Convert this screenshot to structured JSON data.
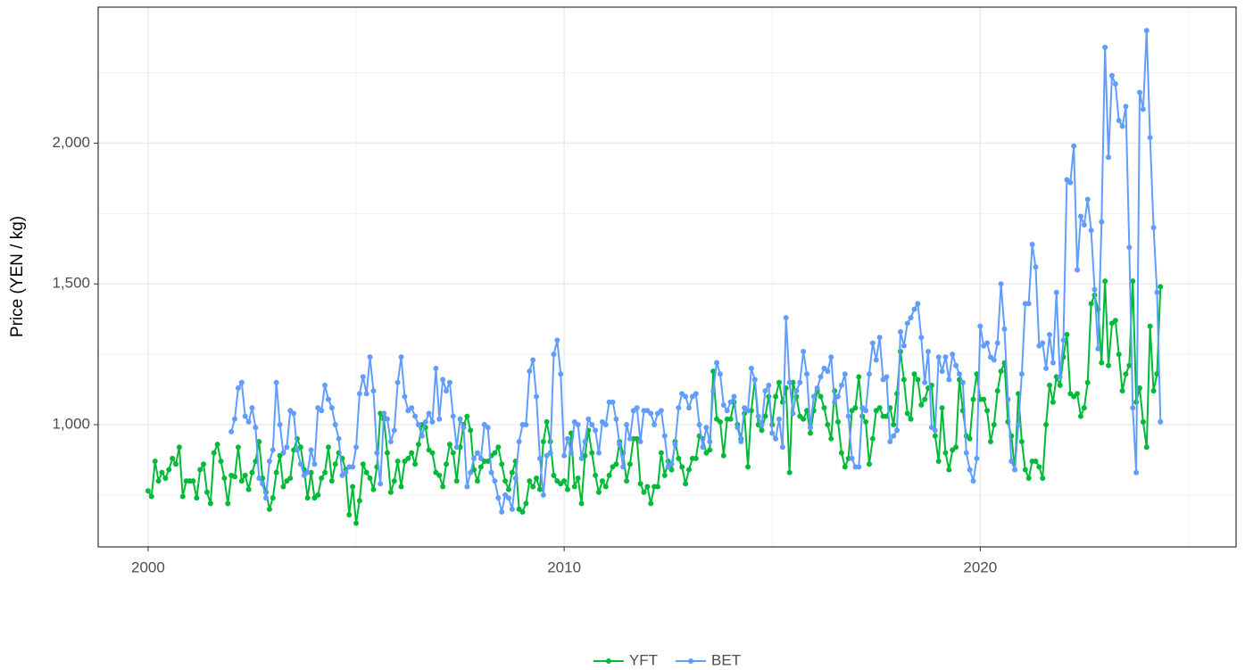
{
  "chart_data": {
    "type": "line",
    "ylabel": "Price (YEN / kg)",
    "xlim": [
      1998.8,
      2026.15
    ],
    "xticks": [
      2000,
      2010,
      2020
    ],
    "ylim": [
      566,
      2483
    ],
    "yticks": [
      {
        "value": 1000,
        "label": "1,000"
      },
      {
        "value": 1500,
        "label": "1,500"
      },
      {
        "value": 2000,
        "label": "2,000"
      }
    ],
    "grid": true,
    "legend": "bottom",
    "x": [
      2000,
      2000.083,
      2000.167,
      2000.25,
      2000.333,
      2000.417,
      2000.5,
      2000.583,
      2000.667,
      2000.75,
      2000.833,
      2000.917,
      2001,
      2001.083,
      2001.167,
      2001.25,
      2001.333,
      2001.417,
      2001.5,
      2001.583,
      2001.667,
      2001.75,
      2001.833,
      2001.917,
      2002,
      2002.083,
      2002.167,
      2002.25,
      2002.333,
      2002.417,
      2002.5,
      2002.583,
      2002.667,
      2002.75,
      2002.833,
      2002.917,
      2003,
      2003.083,
      2003.167,
      2003.25,
      2003.333,
      2003.417,
      2003.5,
      2003.583,
      2003.667,
      2003.75,
      2003.833,
      2003.917,
      2004,
      2004.083,
      2004.167,
      2004.25,
      2004.333,
      2004.417,
      2004.5,
      2004.583,
      2004.667,
      2004.75,
      2004.833,
      2004.917,
      2005,
      2005.083,
      2005.167,
      2005.25,
      2005.333,
      2005.417,
      2005.5,
      2005.583,
      2005.667,
      2005.75,
      2005.833,
      2005.917,
      2006,
      2006.083,
      2006.167,
      2006.25,
      2006.333,
      2006.417,
      2006.5,
      2006.583,
      2006.667,
      2006.75,
      2006.833,
      2006.917,
      2007,
      2007.083,
      2007.167,
      2007.25,
      2007.333,
      2007.417,
      2007.5,
      2007.583,
      2007.667,
      2007.75,
      2007.833,
      2007.917,
      2008,
      2008.083,
      2008.167,
      2008.25,
      2008.333,
      2008.417,
      2008.5,
      2008.583,
      2008.667,
      2008.75,
      2008.833,
      2008.917,
      2009,
      2009.083,
      2009.167,
      2009.25,
      2009.333,
      2009.417,
      2009.5,
      2009.583,
      2009.667,
      2009.75,
      2009.833,
      2009.917,
      2010,
      2010.083,
      2010.167,
      2010.25,
      2010.333,
      2010.417,
      2010.5,
      2010.583,
      2010.667,
      2010.75,
      2010.833,
      2010.917,
      2011,
      2011.083,
      2011.167,
      2011.25,
      2011.333,
      2011.417,
      2011.5,
      2011.583,
      2011.667,
      2011.75,
      2011.833,
      2011.917,
      2012,
      2012.083,
      2012.167,
      2012.25,
      2012.333,
      2012.417,
      2012.5,
      2012.583,
      2012.667,
      2012.75,
      2012.833,
      2012.917,
      2013,
      2013.083,
      2013.167,
      2013.25,
      2013.333,
      2013.417,
      2013.5,
      2013.583,
      2013.667,
      2013.75,
      2013.833,
      2013.917,
      2014,
      2014.083,
      2014.167,
      2014.25,
      2014.333,
      2014.417,
      2014.5,
      2014.583,
      2014.667,
      2014.75,
      2014.833,
      2014.917,
      2015,
      2015.083,
      2015.167,
      2015.25,
      2015.333,
      2015.417,
      2015.5,
      2015.583,
      2015.667,
      2015.75,
      2015.833,
      2015.917,
      2016,
      2016.083,
      2016.167,
      2016.25,
      2016.333,
      2016.417,
      2016.5,
      2016.583,
      2016.667,
      2016.75,
      2016.833,
      2016.917,
      2017,
      2017.083,
      2017.167,
      2017.25,
      2017.333,
      2017.417,
      2017.5,
      2017.583,
      2017.667,
      2017.75,
      2017.833,
      2017.917,
      2018,
      2018.083,
      2018.167,
      2018.25,
      2018.333,
      2018.417,
      2018.5,
      2018.583,
      2018.667,
      2018.75,
      2018.833,
      2018.917,
      2019,
      2019.083,
      2019.167,
      2019.25,
      2019.333,
      2019.417,
      2019.5,
      2019.583,
      2019.667,
      2019.75,
      2019.833,
      2019.917,
      2020,
      2020.083,
      2020.167,
      2020.25,
      2020.333,
      2020.417,
      2020.5,
      2020.583,
      2020.667,
      2020.75,
      2020.833,
      2020.917,
      2021,
      2021.083,
      2021.167,
      2021.25,
      2021.333,
      2021.417,
      2021.5,
      2021.583,
      2021.667,
      2021.75,
      2021.833,
      2021.917,
      2022,
      2022.083,
      2022.167,
      2022.25,
      2022.333,
      2022.417,
      2022.5,
      2022.583,
      2022.667,
      2022.75,
      2022.833,
      2022.917,
      2023,
      2023.083,
      2023.167,
      2023.25,
      2023.333,
      2023.417,
      2023.5,
      2023.583,
      2023.667,
      2023.75,
      2023.833,
      2023.917,
      2024,
      2024.083,
      2024.167,
      2024.25,
      2024.333
    ],
    "series": [
      {
        "name": "YFT",
        "color": "#00ba38",
        "values": [
          765,
          745,
          870,
          800,
          830,
          810,
          840,
          880,
          860,
          920,
          745,
          800,
          800,
          800,
          740,
          840,
          860,
          760,
          720,
          900,
          930,
          870,
          810,
          720,
          820,
          815,
          920,
          800,
          820,
          770,
          830,
          870,
          940,
          810,
          760,
          700,
          740,
          830,
          890,
          780,
          800,
          810,
          910,
          950,
          920,
          840,
          740,
          830,
          740,
          750,
          810,
          830,
          920,
          800,
          860,
          900,
          880,
          840,
          680,
          780,
          650,
          730,
          860,
          830,
          810,
          770,
          850,
          1040,
          1020,
          900,
          760,
          800,
          870,
          780,
          870,
          880,
          900,
          860,
          930,
          1000,
          990,
          910,
          900,
          830,
          820,
          780,
          860,
          930,
          900,
          800,
          920,
          1000,
          1030,
          980,
          840,
          800,
          850,
          870,
          870,
          890,
          900,
          920,
          860,
          800,
          770,
          830,
          870,
          700,
          690,
          720,
          800,
          780,
          810,
          770,
          940,
          1010,
          940,
          820,
          800,
          790,
          800,
          770,
          970,
          780,
          810,
          720,
          890,
          980,
          900,
          820,
          760,
          800,
          780,
          820,
          850,
          860,
          940,
          900,
          800,
          860,
          950,
          950,
          790,
          760,
          780,
          720,
          780,
          780,
          900,
          820,
          870,
          840,
          940,
          880,
          850,
          790,
          840,
          880,
          880,
          960,
          950,
          900,
          910,
          1190,
          1020,
          1010,
          890,
          1020,
          1020,
          1080,
          1000,
          950,
          1040,
          850,
          1050,
          1160,
          1000,
          980,
          1030,
          1100,
          1000,
          1100,
          1150,
          1080,
          1130,
          830,
          1150,
          1100,
          1030,
          1020,
          1050,
          970,
          1050,
          1120,
          1100,
          1060,
          1000,
          950,
          1120,
          1010,
          900,
          850,
          880,
          1050,
          1060,
          1170,
          1030,
          1010,
          860,
          950,
          1050,
          1060,
          1030,
          1030,
          1060,
          1000,
          1110,
          1260,
          1160,
          1040,
          1020,
          1180,
          1160,
          1070,
          1090,
          1130,
          1140,
          960,
          870,
          1060,
          900,
          840,
          910,
          920,
          1160,
          1050,
          960,
          950,
          1090,
          1180,
          1090,
          1090,
          1050,
          940,
          1000,
          1120,
          1190,
          1220,
          1010,
          960,
          840,
          1110,
          940,
          840,
          810,
          870,
          870,
          850,
          810,
          1000,
          1140,
          1080,
          1170,
          1140,
          1240,
          1320,
          1110,
          1100,
          1110,
          1030,
          1060,
          1150,
          1430,
          1460,
          1410,
          1220,
          1510,
          1210,
          1360,
          1370,
          1250,
          1120,
          1180,
          1210,
          1510,
          1080,
          1130,
          1010,
          920,
          1350,
          1120,
          1180,
          1490
        ]
      },
      {
        "name": "BET",
        "color": "#619cff",
        "values": [
          null,
          null,
          null,
          null,
          null,
          null,
          null,
          null,
          null,
          null,
          null,
          null,
          null,
          null,
          null,
          null,
          null,
          null,
          null,
          null,
          null,
          null,
          null,
          null,
          975,
          1020,
          1130,
          1150,
          1030,
          1010,
          1060,
          990,
          810,
          790,
          740,
          870,
          910,
          1150,
          1000,
          900,
          920,
          1050,
          1040,
          910,
          860,
          820,
          830,
          910,
          860,
          1060,
          1050,
          1140,
          1090,
          1060,
          1000,
          950,
          820,
          830,
          850,
          850,
          920,
          1110,
          1170,
          1110,
          1240,
          1120,
          900,
          790,
          1040,
          1020,
          940,
          980,
          1150,
          1240,
          1100,
          1050,
          1060,
          1030,
          1000,
          960,
          1010,
          1040,
          1010,
          1200,
          1020,
          1160,
          1120,
          1150,
          1030,
          920,
          1020,
          990,
          780,
          830,
          880,
          900,
          880,
          1000,
          990,
          830,
          800,
          740,
          690,
          750,
          740,
          700,
          810,
          940,
          1000,
          1000,
          1190,
          1230,
          1100,
          880,
          750,
          890,
          900,
          1250,
          1300,
          1180,
          890,
          950,
          900,
          1010,
          1000,
          880,
          940,
          1020,
          1000,
          980,
          900,
          1010,
          1000,
          1080,
          1080,
          1020,
          930,
          850,
          1000,
          950,
          1050,
          1060,
          940,
          1050,
          1050,
          1040,
          1000,
          1040,
          1050,
          960,
          850,
          860,
          930,
          1060,
          1110,
          1100,
          1060,
          1100,
          1110,
          1000,
          920,
          990,
          940,
          1120,
          1220,
          1180,
          1070,
          1050,
          1080,
          1100,
          990,
          940,
          1060,
          1050,
          1200,
          1160,
          1030,
          1000,
          1120,
          1140,
          970,
          950,
          1020,
          920,
          1380,
          1150,
          1040,
          1120,
          1150,
          1260,
          1180,
          990,
          1100,
          1130,
          1170,
          1200,
          1190,
          1240,
          1080,
          1100,
          1140,
          1180,
          1030,
          880,
          850,
          850,
          1060,
          1050,
          1180,
          1290,
          1230,
          1310,
          1160,
          1170,
          940,
          960,
          980,
          1330,
          1280,
          1360,
          1380,
          1410,
          1430,
          1310,
          1150,
          1260,
          990,
          980,
          1240,
          1190,
          1240,
          1160,
          1250,
          1210,
          1180,
          1150,
          900,
          840,
          800,
          880,
          1350,
          1280,
          1290,
          1240,
          1230,
          1290,
          1500,
          1340,
          1090,
          870,
          840,
          1000,
          1180,
          1430,
          1430,
          1640,
          1560,
          1280,
          1290,
          1200,
          1320,
          1220,
          1470,
          1170,
          1300,
          1870,
          1860,
          1990,
          1550,
          1740,
          1710,
          1800,
          1690,
          1480,
          1270,
          1720,
          2340,
          1950,
          2240,
          2210,
          2080,
          2060,
          2130,
          1630,
          1060,
          830,
          2180,
          2120,
          2400,
          2020,
          1700,
          1470,
          1010
        ]
      }
    ]
  }
}
